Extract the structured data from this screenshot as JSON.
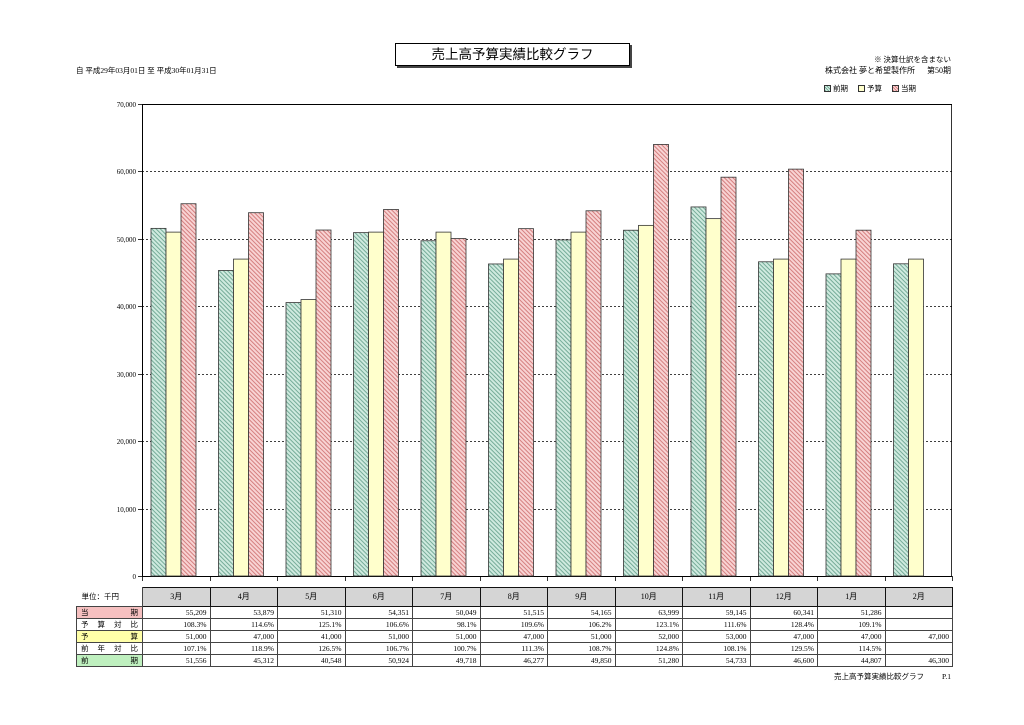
{
  "report": {
    "period": "自 平成29年03月01日 至 平成30年01月31日",
    "note": "※ 決算仕訳を含まない",
    "company": "株式会社 夢と希望製作所",
    "term": "第50期"
  },
  "chart_data": {
    "type": "bar",
    "title": "売上高予算実績比較グラフ",
    "categories": [
      "3月",
      "4月",
      "5月",
      "6月",
      "7月",
      "8月",
      "9月",
      "10月",
      "11月",
      "12月",
      "1月",
      "2月"
    ],
    "series": [
      {
        "name": "前期",
        "values": [
          51556,
          45312,
          40548,
          50924,
          49718,
          46277,
          49850,
          51280,
          54733,
          46600,
          44807,
          46300
        ],
        "color": "#cfeadf",
        "hatch": "#5f9c86"
      },
      {
        "name": "予算",
        "values": [
          51000,
          47000,
          41000,
          51000,
          51000,
          47000,
          51000,
          52000,
          53000,
          47000,
          47000,
          47000
        ],
        "color": "#ffffcc"
      },
      {
        "name": "当期",
        "values": [
          55209,
          53879,
          51310,
          54351,
          50049,
          51515,
          54165,
          63999,
          59145,
          60341,
          51286,
          null
        ],
        "color": "#f8d3d3",
        "hatch": "#cc6a6a"
      }
    ],
    "ylim": [
      0,
      70000
    ],
    "yticks": [
      0,
      10000,
      20000,
      30000,
      40000,
      50000,
      60000,
      70000
    ],
    "ytick_labels": [
      "0",
      "10,000",
      "20,000",
      "30,000",
      "40,000",
      "50,000",
      "60,000",
      "70,000"
    ],
    "grid": true,
    "legend": "top-right"
  },
  "table": {
    "unit_label": "単位：千円",
    "rows": [
      {
        "label": "当期",
        "color": "#f6c0c0",
        "cells": [
          "55,209",
          "53,879",
          "51,310",
          "54,351",
          "50,049",
          "51,515",
          "54,165",
          "63,999",
          "59,145",
          "60,341",
          "51,286",
          ""
        ]
      },
      {
        "label": "予算対比",
        "cells": [
          "108.3%",
          "114.6%",
          "125.1%",
          "106.6%",
          "98.1%",
          "109.6%",
          "106.2%",
          "123.1%",
          "111.6%",
          "128.4%",
          "109.1%",
          ""
        ]
      },
      {
        "label": "予算",
        "color": "#ffffa8",
        "cells": [
          "51,000",
          "47,000",
          "41,000",
          "51,000",
          "51,000",
          "47,000",
          "51,000",
          "52,000",
          "53,000",
          "47,000",
          "47,000",
          "47,000"
        ]
      },
      {
        "label": "前年対比",
        "cells": [
          "107.1%",
          "118.9%",
          "126.5%",
          "106.7%",
          "100.7%",
          "111.3%",
          "108.7%",
          "124.8%",
          "108.1%",
          "129.5%",
          "114.5%",
          ""
        ]
      },
      {
        "label": "前期",
        "color": "#bff0bf",
        "cells": [
          "51,556",
          "45,312",
          "40,548",
          "50,924",
          "49,718",
          "46,277",
          "49,850",
          "51,280",
          "54,733",
          "46,600",
          "44,807",
          "46,300"
        ]
      }
    ]
  },
  "footer": {
    "title": "売上高予算実績比較グラフ",
    "page": "P.1"
  }
}
